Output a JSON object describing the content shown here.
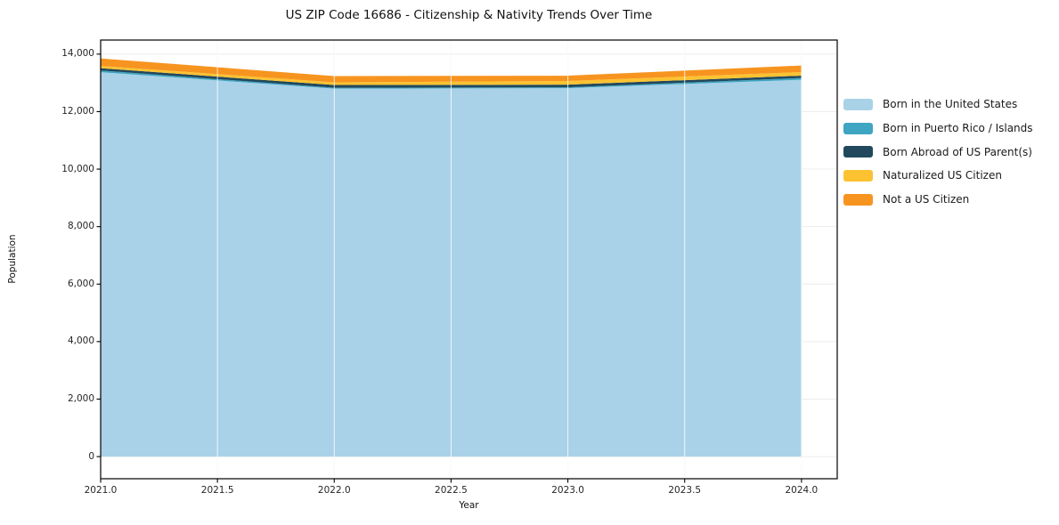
{
  "title": "US ZIP Code 16686 - Citizenship & Nativity Trends Over Time",
  "chart_data": {
    "type": "area",
    "stacked": true,
    "title": "US ZIP Code 16686 - Citizenship & Nativity Trends Over Time",
    "xlabel": "Year",
    "ylabel": "Population",
    "x": [
      2021,
      2022,
      2023,
      2024
    ],
    "series": [
      {
        "name": "Born in the United States",
        "color": "#a9d2e8",
        "values": [
          13370,
          12800,
          12815,
          13110
        ]
      },
      {
        "name": "Born in Puerto Rico / Islands",
        "color": "#3ea5c2",
        "values": [
          60,
          30,
          30,
          60
        ]
      },
      {
        "name": "Born Abroad of US Parent(s)",
        "color": "#21485c",
        "values": [
          80,
          95,
          95,
          80
        ]
      },
      {
        "name": "Naturalized US Citizen",
        "color": "#fcc231",
        "values": [
          80,
          95,
          125,
          125
        ]
      },
      {
        "name": "Not a US Citizen",
        "color": "#f7941f",
        "values": [
          260,
          215,
          185,
          230
        ]
      }
    ],
    "xtick_values": [
      2021.0,
      2021.5,
      2022.0,
      2022.5,
      2023.0,
      2023.5,
      2024.0
    ],
    "xtick_labels": [
      "2021.0",
      "2021.5",
      "2022.0",
      "2022.5",
      "2023.0",
      "2023.5",
      "2024.0"
    ],
    "ytick_values": [
      0,
      2000,
      4000,
      6000,
      8000,
      10000,
      12000,
      14000
    ],
    "ytick_labels": [
      "0",
      "2,000",
      "4,000",
      "6,000",
      "8,000",
      "10,000",
      "12,000",
      "14,000"
    ],
    "xlim": [
      2021,
      2024.153
    ],
    "ylim": [
      -770,
      14490
    ],
    "grid": true,
    "legend_position": "right",
    "colors": {
      "spine": "#000000",
      "grid": "#ececec",
      "grid_over_area": "rgba(255,255,255,0.8)",
      "tick_text": "#262626"
    }
  }
}
